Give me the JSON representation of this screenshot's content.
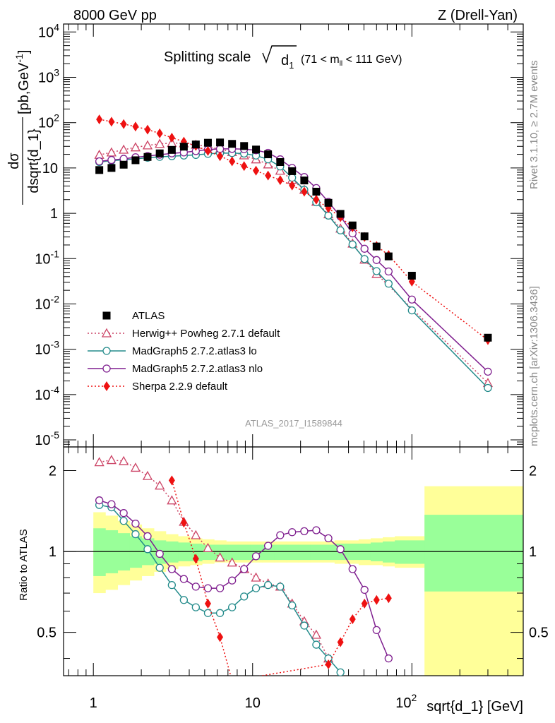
{
  "header": {
    "left": "8000 GeV pp",
    "right": "Z (Drell-Yan)"
  },
  "side_text": {
    "rivet": "Rivet 3.1.10, ≥ 2.7M events",
    "mcplots": "mcplots.cern.ch [arXiv:1306.3436]"
  },
  "analysis_id": "ATLAS_2017_I1589844",
  "chart_data": [
    {
      "type": "scatter",
      "panel": "main",
      "title": "Splitting scale √d1 (71 < mll < 111 GeV)",
      "title_parts": {
        "main": "Splitting scale",
        "var": "d",
        "var_sub": "1",
        "range_pre": "(71 < m",
        "range_sub": "ll",
        "range_post": " < 111 GeV)"
      },
      "ylabel": "dσ/dsqrt{d_1} [pb,GeV⁻¹]",
      "ylabel_parts": {
        "num": "dσ",
        "den": "dsqrt{d_1}",
        "unit": "[pb,GeV",
        "unit_sup": "-1",
        "unit_end": "]"
      },
      "xlabel": "sqrt{d_1} [GeV]",
      "xscale": "log",
      "yscale": "log",
      "xlim": [
        0.65,
        500
      ],
      "ylim": [
        7e-06,
        15000
      ],
      "x_ticks": [
        {
          "value": 1,
          "label": "1"
        },
        {
          "value": 10,
          "label": "10"
        },
        {
          "value": 100,
          "label": "10",
          "sup": "2"
        }
      ],
      "y_ticks": [
        {
          "value": 1e-05,
          "base": "10",
          "sup": "-5"
        },
        {
          "value": 0.0001,
          "base": "10",
          "sup": "-4"
        },
        {
          "value": 0.001,
          "base": "10",
          "sup": "-3"
        },
        {
          "value": 0.01,
          "base": "10",
          "sup": "-2"
        },
        {
          "value": 0.1,
          "base": "10",
          "sup": "-1"
        },
        {
          "value": 1,
          "base": "1",
          "sup": ""
        },
        {
          "value": 10,
          "base": "10",
          "sup": ""
        },
        {
          "value": 100,
          "base": "10",
          "sup": "2"
        },
        {
          "value": 1000,
          "base": "10",
          "sup": "3"
        },
        {
          "value": 10000,
          "base": "10",
          "sup": "4"
        }
      ],
      "legend_position": "bottom-left",
      "series": [
        {
          "name": "ATLAS",
          "color": "#000000",
          "marker": "square",
          "line": "none",
          "x": [
            1.09,
            1.3,
            1.55,
            1.84,
            2.19,
            2.61,
            3.11,
            3.7,
            4.4,
            5.24,
            6.24,
            7.43,
            8.84,
            10.5,
            12.5,
            14.9,
            17.7,
            21.1,
            25.1,
            29.9,
            35.6,
            42.4,
            50.4,
            60.0,
            71.4,
            100,
            300
          ],
          "y": [
            9.0,
            10.0,
            11.8,
            14.8,
            17.5,
            21.0,
            25.0,
            29.5,
            33.0,
            36.0,
            36.5,
            34.0,
            30.5,
            25.5,
            20.0,
            13.5,
            8.5,
            5.3,
            3.0,
            1.7,
            0.97,
            0.54,
            0.31,
            0.185,
            0.112,
            0.042,
            0.0018
          ]
        },
        {
          "name": "Herwig++ Powheg 2.7.1 default",
          "color": "#cc4466",
          "marker": "triangle-open",
          "line": "dotted",
          "x": [
            1.09,
            1.3,
            1.55,
            1.84,
            2.19,
            2.61,
            3.11,
            3.7,
            4.4,
            5.24,
            6.24,
            7.43,
            8.84,
            10.5,
            12.5,
            14.9,
            17.7,
            21.1,
            25.1,
            29.9,
            35.6,
            42.4,
            50.4,
            60.0,
            300
          ],
          "y": [
            19.5,
            22.0,
            25.3,
            28.5,
            31.5,
            34.0,
            35.5,
            35.0,
            32.5,
            29.5,
            26.0,
            22.5,
            19.0,
            15.5,
            12.0,
            8.7,
            5.5,
            3.3,
            1.8,
            0.95,
            0.46,
            0.215,
            0.095,
            0.046,
            0.00018
          ]
        },
        {
          "name": "MadGraph5 2.7.2.atlas3 lo",
          "color": "#238b8b",
          "marker": "circle-open",
          "line": "solid",
          "x": [
            1.09,
            1.3,
            1.55,
            1.84,
            2.19,
            2.61,
            3.11,
            3.7,
            4.4,
            5.24,
            6.24,
            7.43,
            8.84,
            10.5,
            12.5,
            14.9,
            17.7,
            21.1,
            25.1,
            29.9,
            35.6,
            42.4,
            50.4,
            60.0,
            71.4,
            100,
            300
          ],
          "y": [
            13.5,
            14.5,
            15.1,
            15.9,
            16.8,
            17.6,
            18.2,
            18.8,
            19.4,
            20.5,
            21.2,
            21.3,
            20.8,
            18.8,
            15.5,
            10.8,
            6.1,
            3.3,
            1.75,
            0.89,
            0.42,
            0.205,
            0.098,
            0.053,
            0.028,
            0.0072,
            0.00014
          ]
        },
        {
          "name": "MadGraph5 2.7.2.atlas3 nlo",
          "color": "#7f1f8f",
          "marker": "circle-open",
          "line": "solid",
          "x": [
            1.09,
            1.3,
            1.55,
            1.84,
            2.19,
            2.61,
            3.11,
            3.7,
            4.4,
            5.24,
            6.24,
            7.43,
            8.84,
            10.5,
            12.5,
            14.9,
            17.7,
            21.1,
            25.1,
            29.9,
            35.6,
            42.4,
            50.4,
            60.0,
            71.4,
            100,
            300
          ],
          "y": [
            14.0,
            15.0,
            15.9,
            17.2,
            18.3,
            19.6,
            21.0,
            22.0,
            23.6,
            25.5,
            26.3,
            26.4,
            26.0,
            24.6,
            21.5,
            15.5,
            10.0,
            6.3,
            3.6,
            1.78,
            0.85,
            0.36,
            0.165,
            0.093,
            0.052,
            0.0125,
            0.00032
          ]
        },
        {
          "name": "Sherpa 2.2.9 default",
          "color": "#ee1111",
          "marker": "diamond",
          "line": "dotted",
          "x": [
            1.09,
            1.3,
            1.55,
            1.84,
            2.19,
            2.61,
            3.11,
            3.7,
            4.4,
            5.24,
            6.24,
            7.43,
            8.84,
            10.5,
            12.5,
            14.9,
            17.7,
            21.1,
            25.1,
            29.9,
            35.6,
            42.4,
            50.4,
            60.0,
            71.4,
            100,
            300
          ],
          "y": [
            118,
            105,
            93,
            82,
            70,
            58,
            46.5,
            38,
            30.5,
            23.8,
            18.2,
            14.0,
            11.0,
            8.7,
            6.8,
            5.4,
            4.1,
            3.0,
            2.0,
            1.3,
            0.82,
            0.49,
            0.3,
            0.19,
            0.12,
            0.031,
            0.0016
          ]
        }
      ]
    },
    {
      "type": "line",
      "panel": "ratio",
      "ylabel": "Ratio to ATLAS",
      "xlabel": "sqrt{d_1} [GeV]",
      "xscale": "log",
      "yscale": "log",
      "xlim": [
        0.65,
        500
      ],
      "ylim": [
        0.345,
        2.45
      ],
      "y_ticks": [
        {
          "value": 0.5,
          "label": "0.5"
        },
        {
          "value": 1,
          "label": "1"
        },
        {
          "value": 2,
          "label": "2"
        }
      ],
      "bands": {
        "edges": [
          1.0,
          1.19,
          1.42,
          1.69,
          2.01,
          2.4,
          2.85,
          3.4,
          4.04,
          4.81,
          5.73,
          6.82,
          8.12,
          9.66,
          11.5,
          13.7,
          16.3,
          19.4,
          23.1,
          27.5,
          32.7,
          38.9,
          46.3,
          55.1,
          65.6,
          78.1,
          120,
          500
        ],
        "stat_lo": [
          0.81,
          0.83,
          0.85,
          0.87,
          0.89,
          0.9,
          0.91,
          0.92,
          0.92,
          0.93,
          0.93,
          0.93,
          0.93,
          0.93,
          0.93,
          0.93,
          0.93,
          0.93,
          0.93,
          0.93,
          0.93,
          0.93,
          0.93,
          0.92,
          0.91,
          0.9,
          0.71
        ],
        "stat_hi": [
          1.22,
          1.2,
          1.17,
          1.14,
          1.12,
          1.1,
          1.09,
          1.08,
          1.07,
          1.06,
          1.06,
          1.06,
          1.06,
          1.06,
          1.06,
          1.06,
          1.06,
          1.06,
          1.06,
          1.06,
          1.07,
          1.07,
          1.07,
          1.08,
          1.09,
          1.1,
          1.37
        ],
        "tot_lo": [
          0.7,
          0.72,
          0.75,
          0.78,
          0.81,
          0.84,
          0.86,
          0.88,
          0.89,
          0.9,
          0.91,
          0.91,
          0.91,
          0.91,
          0.91,
          0.91,
          0.91,
          0.91,
          0.91,
          0.91,
          0.9,
          0.9,
          0.89,
          0.89,
          0.88,
          0.87,
          0.3
        ],
        "tot_hi": [
          1.4,
          1.36,
          1.3,
          1.26,
          1.22,
          1.19,
          1.16,
          1.14,
          1.12,
          1.11,
          1.1,
          1.09,
          1.09,
          1.09,
          1.09,
          1.09,
          1.09,
          1.09,
          1.09,
          1.09,
          1.1,
          1.1,
          1.11,
          1.12,
          1.13,
          1.14,
          1.75
        ],
        "stat_color": "#99ff99",
        "tot_color": "#ffff99"
      },
      "series": [
        {
          "name": "Herwig++ Powheg 2.7.1 default",
          "color": "#cc4466",
          "marker": "triangle-open",
          "line": "dotted",
          "x": [
            1.09,
            1.3,
            1.55,
            1.84,
            2.19,
            2.61,
            3.11,
            3.7,
            4.4,
            5.24,
            6.24,
            7.43,
            8.84,
            10.5,
            12.5,
            14.9,
            17.7,
            21.1,
            25.1,
            29.9
          ],
          "y": [
            2.15,
            2.19,
            2.17,
            2.05,
            1.91,
            1.76,
            1.55,
            1.29,
            1.15,
            1.03,
            0.95,
            0.91,
            0.86,
            0.8,
            0.76,
            0.74,
            0.64,
            0.55,
            0.49,
            0.4
          ]
        },
        {
          "name": "MadGraph5 2.7.2.atlas3 lo",
          "color": "#238b8b",
          "marker": "circle-open",
          "line": "solid",
          "x": [
            1.09,
            1.3,
            1.55,
            1.84,
            2.19,
            2.61,
            3.11,
            3.7,
            4.4,
            5.24,
            6.24,
            7.43,
            8.84,
            10.5,
            12.5,
            14.9,
            17.7,
            21.1,
            25.1,
            29.9,
            35.6
          ],
          "y": [
            1.49,
            1.46,
            1.3,
            1.16,
            1.02,
            0.87,
            0.75,
            0.66,
            0.62,
            0.59,
            0.59,
            0.62,
            0.68,
            0.73,
            0.75,
            0.74,
            0.63,
            0.53,
            0.45,
            0.4,
            0.355
          ]
        },
        {
          "name": "MadGraph5 2.7.2.atlas3 nlo",
          "color": "#7f1f8f",
          "marker": "circle-open",
          "line": "solid",
          "x": [
            1.09,
            1.3,
            1.55,
            1.84,
            2.19,
            2.61,
            3.11,
            3.7,
            4.4,
            5.24,
            6.24,
            7.43,
            8.84,
            10.5,
            12.5,
            14.9,
            17.7,
            21.1,
            25.1,
            29.9,
            35.6,
            42.4,
            50.4,
            60.0,
            71.4
          ],
          "y": [
            1.55,
            1.5,
            1.39,
            1.27,
            1.14,
            0.98,
            0.86,
            0.79,
            0.74,
            0.73,
            0.73,
            0.78,
            0.86,
            0.96,
            1.05,
            1.15,
            1.18,
            1.19,
            1.2,
            1.12,
            1.02,
            0.86,
            0.72,
            0.51,
            0.4
          ]
        },
        {
          "name": "Sherpa 2.2.9 default",
          "color": "#ee1111",
          "marker": "diamond",
          "line": "dotted",
          "x": [
            3.11,
            3.7,
            4.4,
            5.24,
            6.24,
            7.43,
            29.9,
            35.6,
            42.4,
            50.4,
            60.0,
            71.4
          ],
          "y": [
            1.84,
            1.28,
            0.94,
            0.64,
            0.48,
            0.33,
            0.38,
            0.46,
            0.56,
            0.64,
            0.66,
            0.67
          ]
        }
      ]
    }
  ]
}
